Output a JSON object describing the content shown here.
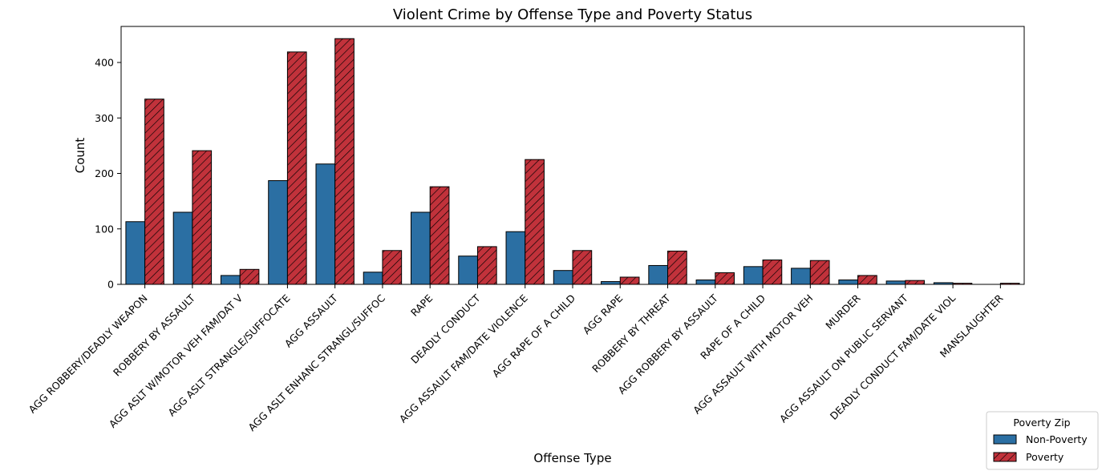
{
  "chart_data": {
    "type": "bar",
    "title": "Violent Crime by Offense Type and Poverty Status",
    "xlabel": "Offense Type",
    "ylabel": "Count",
    "ylim": [
      0,
      465
    ],
    "yticks": [
      0,
      100,
      200,
      300,
      400
    ],
    "grid": false,
    "legend": {
      "title": "Poverty Zip",
      "placement": "bottom-right outside"
    },
    "categories": [
      "AGG ROBBERY/DEADLY WEAPON",
      "ROBBERY BY ASSAULT",
      "AGG ASLT W/MOTOR VEH FAM/DAT V",
      "AGG ASLT STRANGLE/SUFFOCATE",
      "AGG ASSAULT",
      "AGG ASLT ENHANC STRANGL/SUFFOC",
      "RAPE",
      "DEADLY CONDUCT",
      "AGG ASSAULT FAM/DATE VIOLENCE",
      "AGG RAPE OF A CHILD",
      "AGG RAPE",
      "ROBBERY BY THREAT",
      "AGG ROBBERY BY ASSAULT",
      "RAPE OF A CHILD",
      "AGG ASSAULT WITH MOTOR VEH",
      "MURDER",
      "AGG ASSAULT ON PUBLIC SERVANT",
      "DEADLY CONDUCT FAM/DATE VIOL",
      "MANSLAUGHTER"
    ],
    "series": [
      {
        "name": "Non-Poverty",
        "color": "#2b6fa3",
        "hatch": false,
        "values": [
          113,
          130,
          16,
          187,
          217,
          22,
          130,
          51,
          95,
          25,
          5,
          34,
          8,
          32,
          29,
          8,
          6,
          3,
          0
        ]
      },
      {
        "name": "Poverty",
        "color": "#c1323b",
        "hatch": true,
        "values": [
          334,
          241,
          27,
          419,
          443,
          61,
          176,
          68,
          225,
          61,
          13,
          60,
          21,
          44,
          43,
          16,
          7,
          2,
          2
        ]
      }
    ]
  }
}
